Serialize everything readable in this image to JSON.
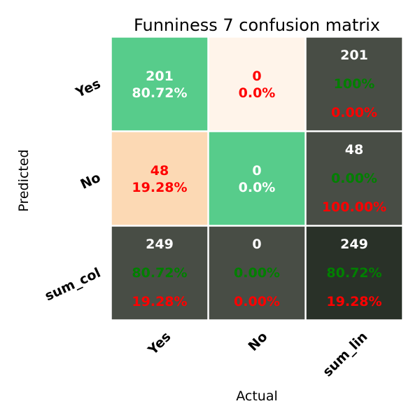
{
  "chart_data": {
    "type": "heatmap",
    "title": "Funniness 7 confusion matrix",
    "xlabel": "Actual",
    "ylabel": "Predicted",
    "x_tick_labels": [
      "Yes",
      "No",
      "sum_lin"
    ],
    "y_tick_labels": [
      "Yes",
      "No",
      "sum_col"
    ],
    "cells": [
      [
        {
          "lines": [
            "201",
            "80.72%"
          ],
          "colors": [
            "#ffffff",
            "#ffffff"
          ],
          "bg": "#57cc8b"
        },
        {
          "lines": [
            "0",
            "0.0%"
          ],
          "colors": [
            "#ff0000",
            "#ff0000"
          ],
          "bg": "#fff4ea"
        },
        {
          "lines": [
            "201",
            "100%",
            "0.00%"
          ],
          "colors": [
            "#ffffff",
            "#008000",
            "#ff0000"
          ],
          "bg": "#484d45"
        }
      ],
      [
        {
          "lines": [
            "48",
            "19.28%"
          ],
          "colors": [
            "#ff0000",
            "#ff0000"
          ],
          "bg": "#fcd9b4"
        },
        {
          "lines": [
            "0",
            "0.0%"
          ],
          "colors": [
            "#ffffff",
            "#ffffff"
          ],
          "bg": "#57cc8b"
        },
        {
          "lines": [
            "48",
            "0.00%",
            "100.00%"
          ],
          "colors": [
            "#ffffff",
            "#008000",
            "#ff0000"
          ],
          "bg": "#484d45"
        }
      ],
      [
        {
          "lines": [
            "249",
            "80.72%",
            "19.28%"
          ],
          "colors": [
            "#ffffff",
            "#008000",
            "#ff0000"
          ],
          "bg": "#484d45"
        },
        {
          "lines": [
            "0",
            "0.00%",
            "0.00%"
          ],
          "colors": [
            "#ffffff",
            "#008000",
            "#ff0000"
          ],
          "bg": "#484d45"
        },
        {
          "lines": [
            "249",
            "80.72%",
            "19.28%"
          ],
          "colors": [
            "#ffffff",
            "#008000",
            "#ff0000"
          ],
          "bg": "#293128"
        }
      ]
    ],
    "grid_line_color": "#ffffff"
  }
}
